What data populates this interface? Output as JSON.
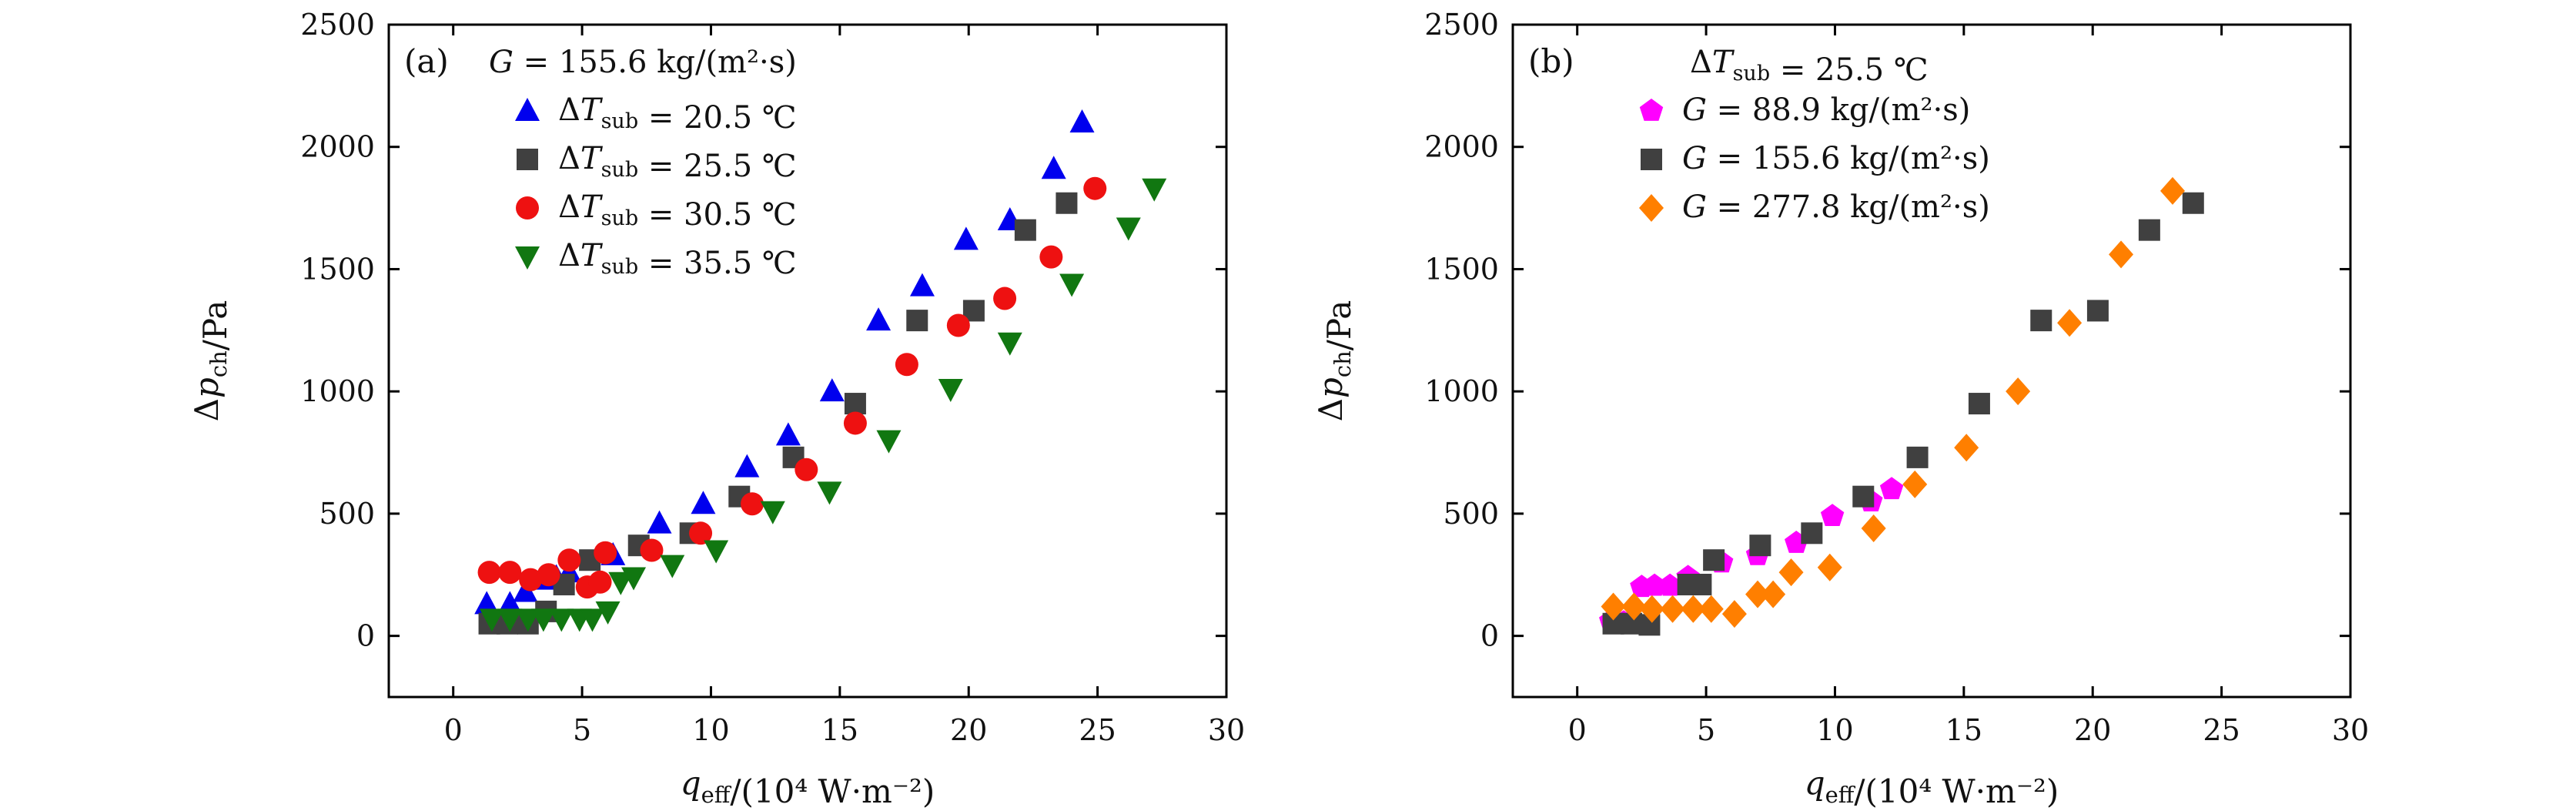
{
  "chart_data": [
    {
      "type": "scatter",
      "panel_label": "(a)",
      "legend_header": "G = 155.6 kg/(m²·s)",
      "xlabel": "q_eff/(10⁴ W·m⁻²)",
      "ylabel": "Δp_ch/Pa",
      "xlim": [
        -2.5,
        30
      ],
      "ylim": [
        -250,
        2500
      ],
      "xticks": [
        0,
        5,
        10,
        15,
        20,
        25,
        30
      ],
      "yticks": [
        0,
        500,
        1000,
        1500,
        2000,
        2500
      ],
      "grid": false,
      "legend_position": "top-left",
      "series": [
        {
          "name": "ΔT_sub = 20.5 ℃",
          "marker": "triangle-up",
          "color": "#0000ee",
          "points": [
            [
              1.3,
              130
            ],
            [
              2.2,
              130
            ],
            [
              2.8,
              180
            ],
            [
              3.5,
              230
            ],
            [
              4.0,
              240
            ],
            [
              4.5,
              260
            ],
            [
              6.2,
              330
            ],
            [
              8.0,
              460
            ],
            [
              9.7,
              540
            ],
            [
              11.4,
              690
            ],
            [
              13.0,
              820
            ],
            [
              14.7,
              1000
            ],
            [
              16.5,
              1290
            ],
            [
              18.2,
              1430
            ],
            [
              19.9,
              1620
            ],
            [
              21.6,
              1700
            ],
            [
              23.3,
              1910
            ],
            [
              24.4,
              2100
            ]
          ]
        },
        {
          "name": "ΔT_sub = 25.5 ℃",
          "marker": "square",
          "color": "#404040",
          "points": [
            [
              1.4,
              50
            ],
            [
              2.1,
              50
            ],
            [
              2.9,
              50
            ],
            [
              3.6,
              100
            ],
            [
              4.3,
              210
            ],
            [
              5.3,
              310
            ],
            [
              7.2,
              370
            ],
            [
              9.2,
              420
            ],
            [
              11.1,
              570
            ],
            [
              13.2,
              730
            ],
            [
              15.6,
              950
            ],
            [
              18.0,
              1290
            ],
            [
              20.2,
              1330
            ],
            [
              22.2,
              1660
            ],
            [
              23.8,
              1770
            ]
          ]
        },
        {
          "name": "ΔT_sub = 30.5 ℃",
          "marker": "circle",
          "color": "#ee1111",
          "points": [
            [
              1.4,
              260
            ],
            [
              2.2,
              260
            ],
            [
              3.0,
              230
            ],
            [
              3.7,
              250
            ],
            [
              4.5,
              310
            ],
            [
              5.2,
              200
            ],
            [
              5.9,
              340
            ],
            [
              5.7,
              220
            ],
            [
              7.7,
              350
            ],
            [
              9.6,
              420
            ],
            [
              11.6,
              540
            ],
            [
              13.7,
              680
            ],
            [
              15.6,
              870
            ],
            [
              17.6,
              1110
            ],
            [
              19.6,
              1270
            ],
            [
              21.4,
              1380
            ],
            [
              23.2,
              1550
            ],
            [
              24.9,
              1830
            ]
          ]
        },
        {
          "name": "ΔT_sub = 35.5 ℃",
          "marker": "triangle-down",
          "color": "#117711",
          "points": [
            [
              1.5,
              70
            ],
            [
              2.2,
              70
            ],
            [
              2.9,
              70
            ],
            [
              3.5,
              70
            ],
            [
              4.2,
              70
            ],
            [
              4.9,
              70
            ],
            [
              5.4,
              70
            ],
            [
              6.0,
              100
            ],
            [
              6.5,
              220
            ],
            [
              7.0,
              240
            ],
            [
              8.5,
              290
            ],
            [
              10.2,
              350
            ],
            [
              12.4,
              510
            ],
            [
              14.6,
              590
            ],
            [
              16.9,
              800
            ],
            [
              19.3,
              1010
            ],
            [
              21.6,
              1200
            ],
            [
              24.0,
              1440
            ],
            [
              26.2,
              1670
            ],
            [
              27.2,
              1830
            ]
          ]
        }
      ]
    },
    {
      "type": "scatter",
      "panel_label": "(b)",
      "legend_header": "ΔT_sub = 25.5 ℃",
      "xlabel": "q_eff/(10⁴ W·m⁻²)",
      "ylabel": "Δp_ch/Pa",
      "xlim": [
        -2.5,
        30
      ],
      "ylim": [
        -250,
        2500
      ],
      "xticks": [
        0,
        5,
        10,
        15,
        20,
        25,
        30
      ],
      "yticks": [
        0,
        500,
        1000,
        1500,
        2000,
        2500
      ],
      "grid": false,
      "legend_position": "top-left",
      "series": [
        {
          "name": "G = 88.9 kg/(m²·s)",
          "marker": "pentagon",
          "color": "#ff00ff",
          "points": [
            [
              1.3,
              60
            ],
            [
              1.8,
              55
            ],
            [
              2.3,
              55
            ],
            [
              2.5,
              200
            ],
            [
              3.0,
              205
            ],
            [
              3.6,
              205
            ],
            [
              4.3,
              240
            ],
            [
              5.6,
              300
            ],
            [
              7.0,
              330
            ],
            [
              8.5,
              380
            ],
            [
              9.9,
              490
            ],
            [
              11.4,
              550
            ],
            [
              12.2,
              600
            ]
          ]
        },
        {
          "name": "G = 155.6 kg/(m²·s)",
          "marker": "square",
          "color": "#404040",
          "points": [
            [
              1.4,
              50
            ],
            [
              2.1,
              50
            ],
            [
              2.8,
              45
            ],
            [
              4.3,
              210
            ],
            [
              4.8,
              210
            ],
            [
              5.3,
              310
            ],
            [
              7.1,
              370
            ],
            [
              9.1,
              420
            ],
            [
              11.1,
              570
            ],
            [
              13.2,
              730
            ],
            [
              15.6,
              950
            ],
            [
              18.0,
              1290
            ],
            [
              20.2,
              1330
            ],
            [
              22.2,
              1660
            ],
            [
              23.9,
              1770
            ]
          ]
        },
        {
          "name": "G = 277.8 kg/(m²·s)",
          "marker": "diamond",
          "color": "#ff7f00",
          "points": [
            [
              1.4,
              120
            ],
            [
              2.2,
              120
            ],
            [
              2.9,
              110
            ],
            [
              3.7,
              110
            ],
            [
              4.5,
              110
            ],
            [
              5.2,
              110
            ],
            [
              6.1,
              90
            ],
            [
              7.0,
              170
            ],
            [
              7.6,
              170
            ],
            [
              8.3,
              260
            ],
            [
              9.8,
              280
            ],
            [
              11.5,
              440
            ],
            [
              13.1,
              620
            ],
            [
              15.1,
              770
            ],
            [
              17.1,
              1000
            ],
            [
              19.1,
              1280
            ],
            [
              21.1,
              1560
            ],
            [
              23.1,
              1820
            ]
          ]
        }
      ]
    }
  ]
}
